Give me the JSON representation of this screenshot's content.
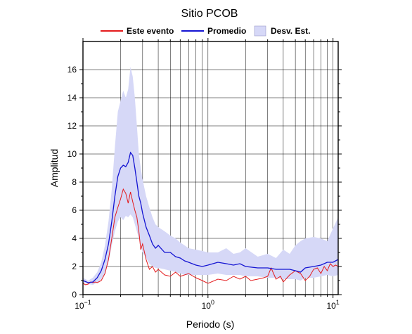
{
  "chart_data": {
    "type": "line",
    "title": "Sitio PCOB",
    "xlabel": "Periodo (s)",
    "ylabel": "Amplitud",
    "xscale": "log",
    "xlim": [
      0.1,
      11
    ],
    "ylim": [
      0,
      18
    ],
    "grid": true,
    "legend_position": "top",
    "x_ticks": [
      {
        "value": 0.1,
        "base": "10",
        "exp": "−1"
      },
      {
        "value": 1,
        "base": "10",
        "exp": "0"
      },
      {
        "value": 10,
        "base": "10",
        "exp": "1"
      }
    ],
    "y_ticks": [
      0,
      2,
      4,
      6,
      8,
      10,
      12,
      14,
      16
    ],
    "legend": [
      {
        "label": "Este evento",
        "kind": "line",
        "color": "#e41a1c"
      },
      {
        "label": "Promedio",
        "kind": "line",
        "color": "#1414d2"
      },
      {
        "label": "Desv. Est.",
        "kind": "band",
        "color": "#d6d8f7"
      }
    ],
    "series": [
      {
        "name": "Este evento",
        "color": "#e41a1c",
        "x": [
          0.1,
          0.105,
          0.11,
          0.115,
          0.12,
          0.125,
          0.13,
          0.14,
          0.15,
          0.16,
          0.17,
          0.18,
          0.19,
          0.2,
          0.21,
          0.22,
          0.23,
          0.24,
          0.25,
          0.26,
          0.27,
          0.28,
          0.29,
          0.3,
          0.32,
          0.34,
          0.36,
          0.38,
          0.4,
          0.45,
          0.5,
          0.55,
          0.6,
          0.7,
          0.8,
          0.9,
          1.0,
          1.2,
          1.4,
          1.6,
          1.8,
          2.0,
          2.2,
          2.5,
          2.8,
          3.0,
          3.2,
          3.5,
          3.8,
          4.0,
          4.5,
          5.0,
          5.5,
          6.0,
          6.5,
          7.0,
          7.5,
          8.0,
          8.5,
          9.0,
          9.5,
          10.0,
          10.5,
          11.0
        ],
        "y": [
          0.8,
          0.7,
          0.75,
          0.9,
          0.85,
          0.9,
          0.85,
          1.0,
          1.5,
          2.5,
          4.0,
          5.5,
          6.2,
          6.8,
          7.5,
          7.2,
          6.5,
          7.3,
          6.6,
          6.0,
          5.5,
          4.5,
          3.2,
          3.6,
          2.5,
          1.8,
          2.0,
          1.6,
          1.8,
          1.4,
          1.3,
          1.6,
          1.3,
          1.5,
          1.2,
          1.0,
          0.8,
          1.1,
          1.0,
          1.3,
          1.1,
          1.3,
          1.0,
          1.1,
          1.2,
          1.3,
          1.9,
          1.1,
          1.3,
          0.9,
          1.4,
          1.7,
          1.5,
          1.0,
          1.3,
          1.8,
          1.9,
          1.5,
          2.0,
          1.7,
          2.2,
          2.0,
          2.1,
          2.0
        ]
      },
      {
        "name": "Promedio",
        "color": "#1414d2",
        "x": [
          0.1,
          0.11,
          0.12,
          0.13,
          0.14,
          0.15,
          0.16,
          0.17,
          0.18,
          0.19,
          0.2,
          0.21,
          0.22,
          0.23,
          0.24,
          0.25,
          0.26,
          0.27,
          0.28,
          0.29,
          0.3,
          0.32,
          0.34,
          0.36,
          0.38,
          0.4,
          0.45,
          0.5,
          0.55,
          0.6,
          0.65,
          0.7,
          0.8,
          0.9,
          1.0,
          1.2,
          1.4,
          1.6,
          1.8,
          2.0,
          2.5,
          3.0,
          3.5,
          4.0,
          4.5,
          5.0,
          5.5,
          6.0,
          7.0,
          8.0,
          9.0,
          10.0,
          11.0
        ],
        "y": [
          1.0,
          0.85,
          0.9,
          1.2,
          1.7,
          2.5,
          3.6,
          5.2,
          7.0,
          8.4,
          9.0,
          9.2,
          9.1,
          9.4,
          10.1,
          9.9,
          9.0,
          8.0,
          7.0,
          6.5,
          5.8,
          4.8,
          4.2,
          3.6,
          3.3,
          3.5,
          3.0,
          3.0,
          2.7,
          2.6,
          2.4,
          2.3,
          2.1,
          2.0,
          2.1,
          2.3,
          2.2,
          2.1,
          2.2,
          2.0,
          1.9,
          1.9,
          1.8,
          1.8,
          1.8,
          1.7,
          1.6,
          1.9,
          2.0,
          2.1,
          2.3,
          2.3,
          2.5
        ]
      }
    ],
    "band": {
      "name": "Desv. Est.",
      "color": "#d6d8f7",
      "x": [
        0.1,
        0.11,
        0.12,
        0.13,
        0.14,
        0.15,
        0.16,
        0.17,
        0.18,
        0.19,
        0.2,
        0.21,
        0.22,
        0.23,
        0.24,
        0.25,
        0.26,
        0.27,
        0.28,
        0.29,
        0.3,
        0.32,
        0.34,
        0.36,
        0.38,
        0.4,
        0.45,
        0.5,
        0.55,
        0.6,
        0.65,
        0.7,
        0.8,
        0.9,
        1.0,
        1.2,
        1.4,
        1.6,
        1.8,
        2.0,
        2.5,
        3.0,
        3.5,
        4.0,
        4.5,
        5.0,
        5.5,
        6.0,
        7.0,
        8.0,
        9.0,
        10.0,
        11.0
      ],
      "upper": [
        1.2,
        1.0,
        1.2,
        1.6,
        2.3,
        3.5,
        5.2,
        7.5,
        10.5,
        13.0,
        13.8,
        14.5,
        14.0,
        14.6,
        16.2,
        15.5,
        14.0,
        12.0,
        10.0,
        9.0,
        8.2,
        7.0,
        6.2,
        5.5,
        5.0,
        4.8,
        4.5,
        4.2,
        4.0,
        3.7,
        3.5,
        3.3,
        3.2,
        3.1,
        3.0,
        3.0,
        3.3,
        2.9,
        3.0,
        3.3,
        2.7,
        2.9,
        2.6,
        3.2,
        2.9,
        3.5,
        3.8,
        4.0,
        4.1,
        4.0,
        3.8,
        4.7,
        5.5
      ],
      "lower": [
        0.85,
        0.75,
        0.7,
        0.85,
        1.1,
        1.5,
        2.3,
        3.5,
        4.5,
        5.2,
        5.5,
        5.3,
        5.6,
        5.5,
        5.7,
        5.5,
        5.0,
        4.5,
        4.0,
        3.5,
        3.0,
        2.6,
        2.2,
        2.0,
        1.9,
        1.9,
        1.8,
        1.7,
        1.6,
        1.5,
        1.4,
        1.4,
        1.4,
        1.4,
        1.4,
        1.5,
        1.4,
        1.4,
        1.4,
        1.3,
        1.3,
        1.2,
        1.2,
        1.1,
        1.1,
        1.1,
        1.0,
        1.2,
        1.2,
        1.3,
        1.4,
        1.3,
        1.4
      ]
    }
  }
}
